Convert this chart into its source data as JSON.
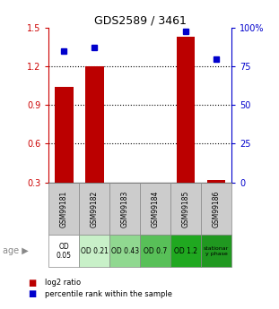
{
  "title": "GDS2589 / 3461",
  "samples": [
    "GSM99181",
    "GSM99182",
    "GSM99183",
    "GSM99184",
    "GSM99185",
    "GSM99186"
  ],
  "log2_ratio": [
    1.04,
    1.2,
    0.3,
    0.3,
    1.43,
    0.32
  ],
  "percentile_rank": [
    85,
    87,
    null,
    null,
    98,
    80
  ],
  "ylim_left": [
    0.3,
    1.5
  ],
  "ylim_right": [
    0,
    100
  ],
  "yticks_left": [
    0.3,
    0.6,
    0.9,
    1.2,
    1.5
  ],
  "yticks_right": [
    0,
    25,
    50,
    75,
    100
  ],
  "bar_color": "#bb0000",
  "dot_color": "#0000cc",
  "bar_width": 0.6,
  "age_labels": [
    "OD\n0.05",
    "OD 0.21",
    "OD 0.43",
    "OD 0.7",
    "OD 1.2",
    "stationar\ny phase"
  ],
  "age_bg_colors": [
    "#ffffff",
    "#c8f0c8",
    "#90d890",
    "#58c058",
    "#20a820",
    "#209820"
  ],
  "sample_bg_color": "#cccccc",
  "legend_log2": "log2 ratio",
  "legend_pct": "percentile rank within the sample",
  "ylabel_left_color": "#cc0000",
  "ylabel_right_color": "#0000cc",
  "gridline_vals": [
    0.6,
    0.9,
    1.2
  ]
}
